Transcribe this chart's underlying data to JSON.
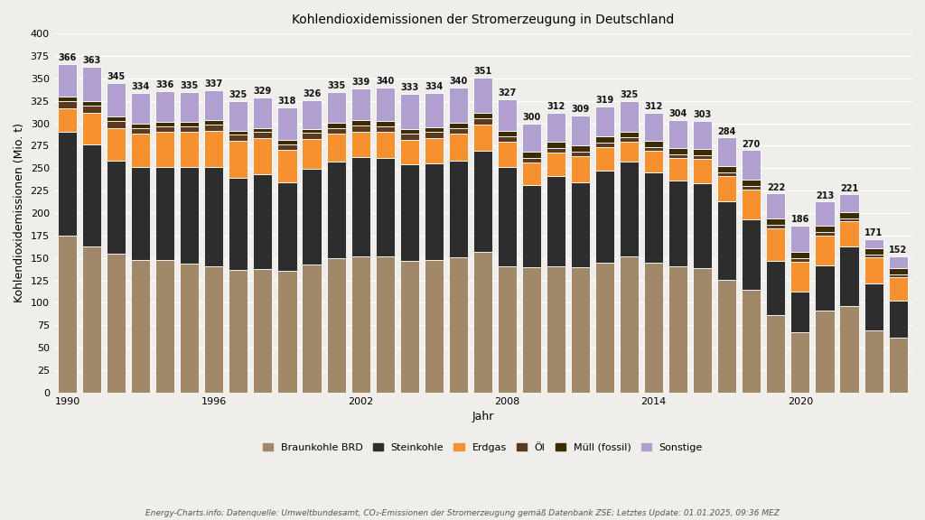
{
  "title": "Kohlendioxidemissionen der Stromerzeugung in Deutschland",
  "xlabel": "Jahr",
  "ylabel": "Kohlendioxidemissionen (Mio. t)",
  "footnote": "Energy-Charts.info; Datenquelle: Umweltbundesamt, CO₂-Emissionen der Stromerzeugung gemäß Datenbank ZSE; Letztes Update: 01.01.2025, 09:36 MEZ",
  "years": [
    1990,
    1991,
    1992,
    1993,
    1994,
    1995,
    1996,
    1997,
    1998,
    1999,
    2000,
    2001,
    2002,
    2003,
    2004,
    2005,
    2006,
    2007,
    2008,
    2009,
    2010,
    2011,
    2012,
    2013,
    2014,
    2015,
    2016,
    2017,
    2018,
    2019,
    2020,
    2021,
    2022,
    2023,
    2024
  ],
  "totals": [
    366,
    363,
    345,
    334,
    336,
    335,
    337,
    325,
    329,
    318,
    326,
    335,
    339,
    340,
    333,
    334,
    340,
    351,
    327,
    300,
    312,
    309,
    319,
    325,
    312,
    304,
    303,
    284,
    270,
    222,
    186,
    213,
    221,
    171,
    152
  ],
  "series": {
    "Braunkohle BRD": {
      "color": "#a08868",
      "values": [
        175,
        163,
        155,
        148,
        148,
        144,
        141,
        137,
        138,
        136,
        143,
        150,
        152,
        152,
        147,
        148,
        151,
        157,
        141,
        140,
        141,
        140,
        145,
        152,
        145,
        141,
        139,
        126,
        115,
        86,
        67,
        91,
        96,
        69,
        61
      ]
    },
    "Steinkohle": {
      "color": "#2d2d2d",
      "values": [
        115,
        113,
        103,
        103,
        103,
        107,
        110,
        102,
        105,
        98,
        106,
        107,
        110,
        109,
        107,
        107,
        107,
        112,
        110,
        91,
        100,
        94,
        102,
        105,
        100,
        95,
        94,
        87,
        78,
        61,
        46,
        51,
        67,
        53,
        41
      ]
    },
    "Erdgas": {
      "color": "#f5922f",
      "values": [
        27,
        36,
        37,
        37,
        39,
        39,
        41,
        41,
        40,
        36,
        33,
        31,
        29,
        29,
        27,
        28,
        30,
        30,
        28,
        25,
        26,
        29,
        26,
        22,
        24,
        25,
        27,
        28,
        33,
        36,
        33,
        33,
        28,
        29,
        27
      ]
    },
    "Öl": {
      "color": "#5c3a1e",
      "values": [
        8,
        8,
        8,
        7,
        7,
        7,
        7,
        7,
        7,
        6,
        7,
        7,
        7,
        7,
        7,
        7,
        7,
        7,
        6,
        5,
        5,
        5,
        5,
        5,
        4,
        4,
        4,
        4,
        4,
        4,
        4,
        4,
        3,
        3,
        3
      ]
    },
    "Müll (fossil)": {
      "color": "#3d2b00",
      "values": [
        5,
        5,
        5,
        5,
        5,
        5,
        5,
        5,
        5,
        5,
        5,
        6,
        6,
        6,
        6,
        6,
        6,
        6,
        7,
        7,
        7,
        7,
        7,
        7,
        7,
        7,
        7,
        7,
        7,
        7,
        7,
        7,
        7,
        7,
        7
      ]
    },
    "Sonstige": {
      "color": "#b0a0d0",
      "values": [
        36,
        38,
        37,
        34,
        34,
        33,
        33,
        33,
        34,
        37,
        32,
        34,
        35,
        37,
        39,
        38,
        39,
        39,
        35,
        32,
        33,
        34,
        34,
        34,
        32,
        32,
        32,
        32,
        33,
        28,
        29,
        27,
        20,
        10,
        13
      ]
    }
  },
  "ylim": [
    0,
    400
  ],
  "yticks": [
    0,
    25,
    50,
    75,
    100,
    125,
    150,
    175,
    200,
    225,
    250,
    275,
    300,
    325,
    350,
    375,
    400
  ],
  "background_color": "#f0eeea",
  "bar_edge_color": "white",
  "legend_labels": [
    "Braunkohle BRD",
    "Steinkohle",
    "Erdgas",
    "Öl",
    "Müll (fossil)",
    "Sonstige"
  ],
  "title_fontsize": 10,
  "axis_fontsize": 9,
  "tick_fontsize": 8,
  "annotation_fontsize": 7,
  "legend_fontsize": 8
}
